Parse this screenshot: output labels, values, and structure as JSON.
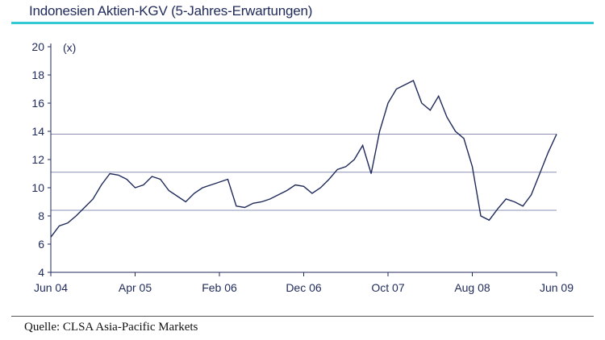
{
  "header": {
    "title": "Indonesien Aktien-KGV (5-Jahres-Erwartungen)"
  },
  "footer": {
    "source": "Quelle: CLSA Asia-Pacific Markets"
  },
  "chart_data": {
    "type": "line",
    "title": "Indonesien Aktien-KGV (5-Jahres-Erwartungen)",
    "unit_label": "(x)",
    "xlabel": "",
    "ylabel": "",
    "ylim": [
      4,
      20
    ],
    "yticks": [
      4,
      6,
      8,
      10,
      12,
      14,
      16,
      18,
      20
    ],
    "xticks": [
      "Jun 04",
      "Apr 05",
      "Feb 06",
      "Dec 06",
      "Oct 07",
      "Aug 08",
      "Jun 09"
    ],
    "reference_lines": [
      8.4,
      11.1,
      13.8
    ],
    "line_color": "#1f2a5a",
    "ref_line_color": "#8a90b4",
    "series": [
      {
        "x": [
          "Jun 04",
          "Jul 04",
          "Aug 04",
          "Sep 04",
          "Oct 04",
          "Nov 04",
          "Dec 04",
          "Jan 05",
          "Feb 05",
          "Mar 05",
          "Apr 05",
          "May 05",
          "Jun 05",
          "Jul 05",
          "Aug 05",
          "Sep 05",
          "Oct 05",
          "Nov 05",
          "Dec 05",
          "Jan 06",
          "Feb 06",
          "Mar 06",
          "Apr 06",
          "May 06",
          "Jun 06",
          "Jul 06",
          "Aug 06",
          "Sep 06",
          "Oct 06",
          "Nov 06",
          "Dec 06",
          "Jan 07",
          "Feb 07",
          "Mar 07",
          "Apr 07",
          "May 07",
          "Jun 07",
          "Jul 07",
          "Aug 07",
          "Sep 07",
          "Oct 07",
          "Nov 07",
          "Dec 07",
          "Jan 08",
          "Feb 08",
          "Mar 08",
          "Apr 08",
          "May 08",
          "Jun 08",
          "Jul 08",
          "Aug 08",
          "Sep 08",
          "Oct 08",
          "Nov 08",
          "Dec 08",
          "Jan 09",
          "Feb 09",
          "Mar 09",
          "Apr 09",
          "May 09",
          "Jun 09"
        ],
        "values": [
          6.5,
          7.3,
          7.5,
          8.0,
          8.6,
          9.2,
          10.2,
          11.0,
          10.9,
          10.6,
          10.0,
          10.2,
          10.8,
          10.6,
          9.8,
          9.4,
          9.0,
          9.6,
          10.0,
          10.2,
          10.4,
          10.6,
          8.7,
          8.6,
          8.9,
          9.0,
          9.2,
          9.5,
          9.8,
          10.2,
          10.1,
          9.6,
          10.0,
          10.6,
          11.3,
          11.5,
          12.0,
          13.0,
          11.0,
          14.0,
          16.0,
          17.0,
          17.3,
          17.6,
          16.0,
          15.5,
          16.5,
          15.0,
          14.0,
          13.5,
          11.5,
          8.0,
          7.7,
          8.5,
          9.2,
          9.0,
          8.7,
          9.5,
          11.0,
          12.5,
          13.8
        ]
      }
    ]
  }
}
